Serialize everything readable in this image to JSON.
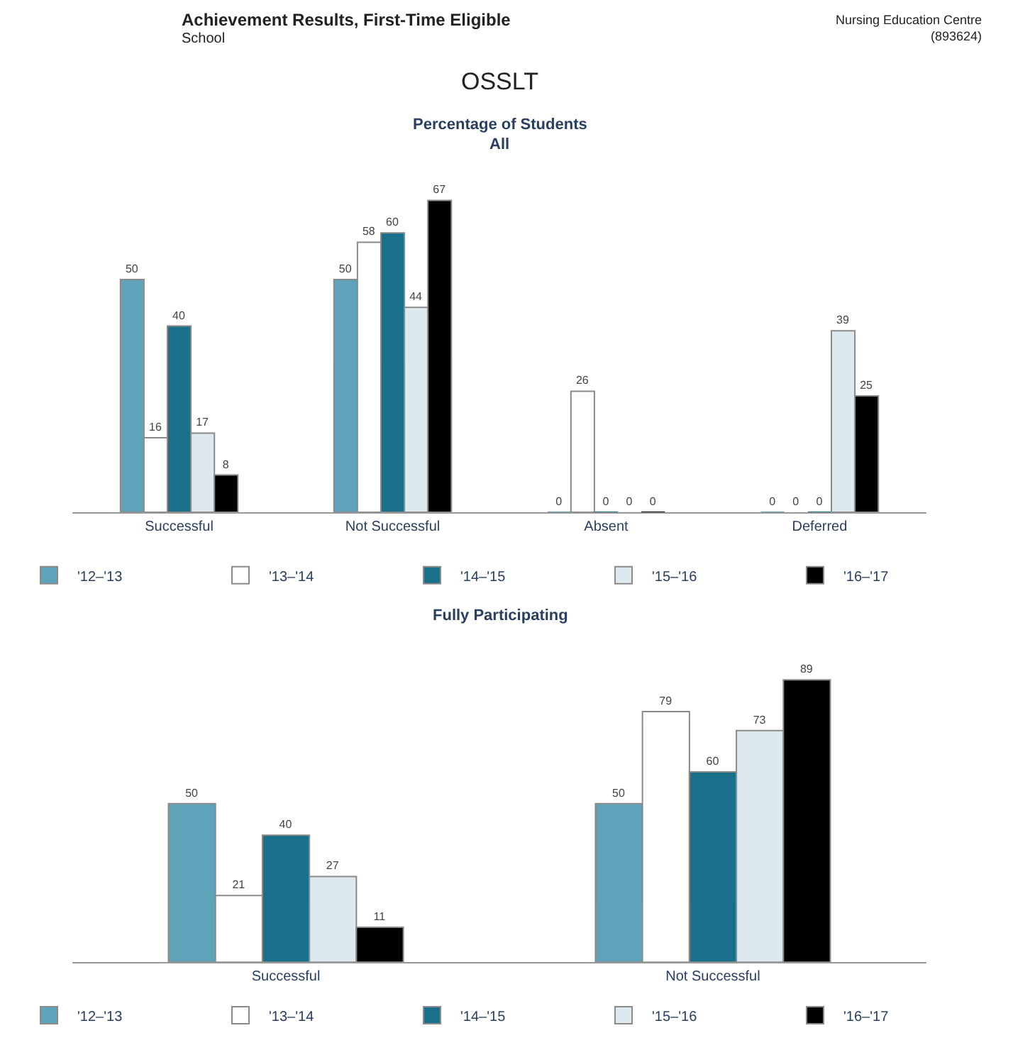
{
  "chart_data": [
    {
      "type": "bar",
      "title": "Percentage of Students",
      "subtitle": "All",
      "annotations": [
        "Achievement Results, First-Time Eligible",
        "School",
        "OSSLT",
        "Nursing Education Centre\n(893624)"
      ],
      "categories": [
        "Successful",
        "Not Successful",
        "Absent",
        "Deferred"
      ],
      "series": [
        {
          "name": "'12–'13",
          "color": "#5fa3bb",
          "values": [
            50,
            50,
            0,
            0
          ]
        },
        {
          "name": "'13–'14",
          "color": "#ffffff",
          "values": [
            16,
            58,
            26,
            0
          ]
        },
        {
          "name": "'14–'15",
          "color": "#1a6f8a",
          "values": [
            40,
            60,
            0,
            0
          ]
        },
        {
          "name": "'15–'16",
          "color": "#dde9ee",
          "values": [
            17,
            44,
            0,
            39
          ]
        },
        {
          "name": "'16–'17",
          "color": "#000000",
          "values": [
            8,
            67,
            0,
            25
          ]
        }
      ],
      "data_labels": true,
      "legend": "bottom"
    },
    {
      "type": "bar",
      "title": "Fully Participating",
      "categories": [
        "Successful",
        "Not Successful"
      ],
      "series": [
        {
          "name": "'12–'13",
          "color": "#5fa3bb",
          "values": [
            50,
            50
          ]
        },
        {
          "name": "'13–'14",
          "color": "#ffffff",
          "values": [
            21,
            79
          ]
        },
        {
          "name": "'14–'15",
          "color": "#1a6f8a",
          "values": [
            40,
            60
          ]
        },
        {
          "name": "'15–'16",
          "color": "#dde9ee",
          "values": [
            27,
            73
          ]
        },
        {
          "name": "'16–'17",
          "color": "#000000",
          "values": [
            11,
            89
          ]
        }
      ],
      "data_labels": true,
      "legend": "bottom"
    }
  ]
}
